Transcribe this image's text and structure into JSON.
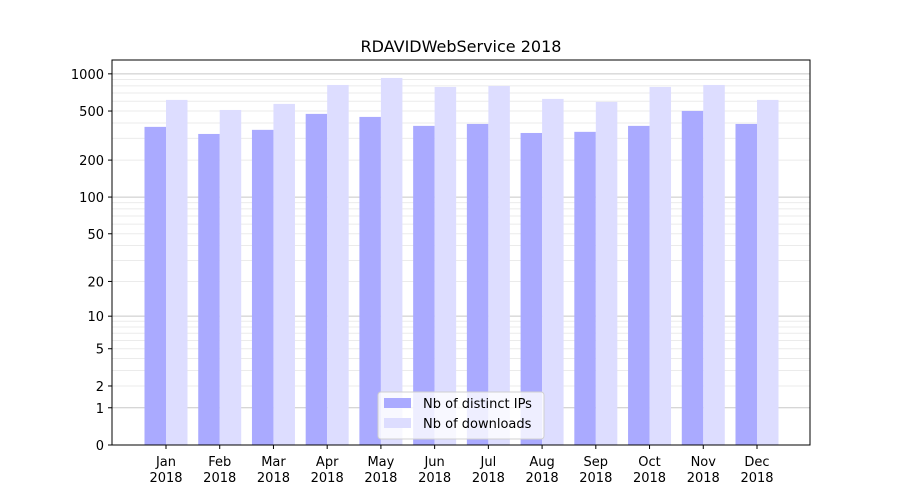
{
  "chart_data": {
    "type": "bar",
    "title": "RDAVIDWebService 2018",
    "xlabel": "",
    "ylabel": "",
    "yscale": "log10(1+y)",
    "ylim": [
      0,
      1300
    ],
    "yticks": [
      0,
      1,
      2,
      5,
      10,
      20,
      50,
      100,
      200,
      500,
      1000
    ],
    "grid": true,
    "legend_position": "lower center",
    "categories": [
      "Jan\n2018",
      "Feb\n2018",
      "Mar\n2018",
      "Apr\n2018",
      "May\n2018",
      "Jun\n2018",
      "Jul\n2018",
      "Aug\n2018",
      "Sep\n2018",
      "Oct\n2018",
      "Nov\n2018",
      "Dec\n2018"
    ],
    "series": [
      {
        "name": "Nb of distinct IPs",
        "color": "#aaaaff",
        "values": [
          372,
          326,
          352,
          474,
          448,
          379,
          393,
          332,
          339,
          379,
          501,
          393
        ]
      },
      {
        "name": "Nb of downloads",
        "color": "#ddddff",
        "values": [
          615,
          510,
          571,
          813,
          926,
          783,
          798,
          627,
          593,
          783,
          813,
          615
        ]
      }
    ]
  }
}
